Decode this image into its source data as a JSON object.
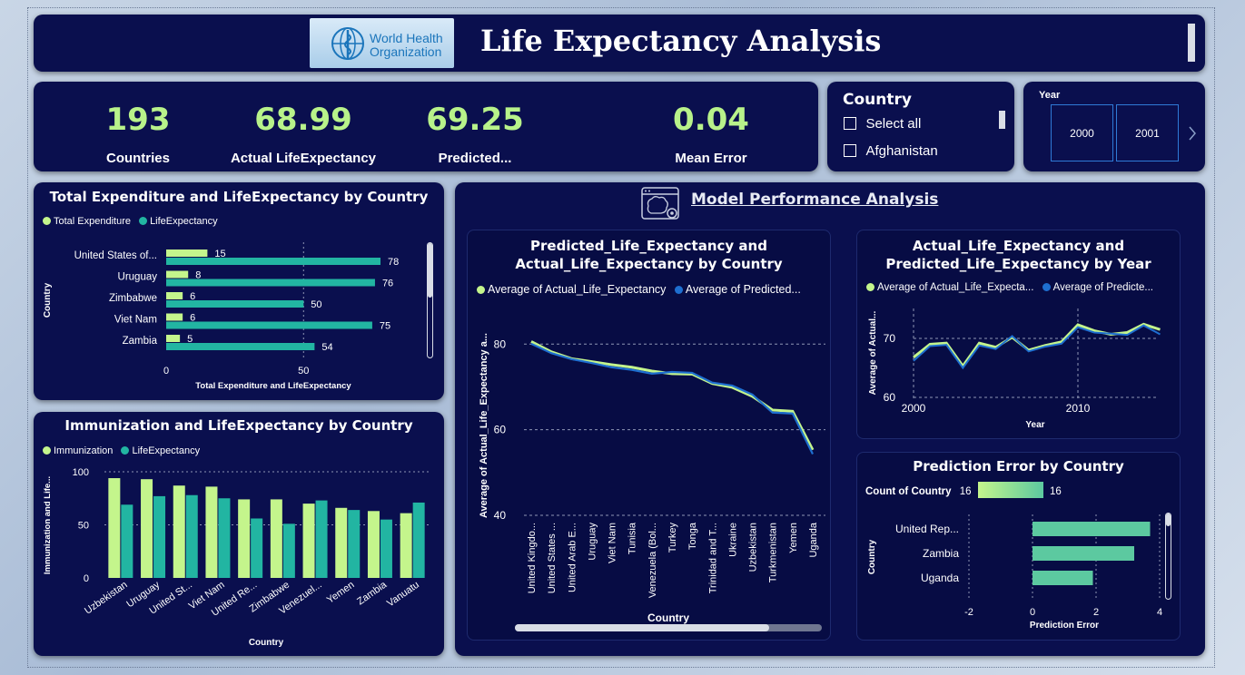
{
  "header": {
    "logo_line1": "World Health",
    "logo_line2": "Organization",
    "title": "Life Expectancy Analysis"
  },
  "kpis": [
    {
      "value": "193",
      "label": "Countries"
    },
    {
      "value": "68.99",
      "label": "Actual LifeExpectancy"
    },
    {
      "value": "69.25",
      "label": "Predicted..."
    },
    {
      "value": "0.04",
      "label": "Mean Error"
    }
  ],
  "country_slicer": {
    "title": "Country",
    "items": [
      "Select all",
      "Afghanistan"
    ]
  },
  "year_slicer": {
    "title": "Year",
    "items": [
      "2000",
      "2001"
    ],
    "next_icon": "chevron-right-icon"
  },
  "colors": {
    "light_green": "#c4f58c",
    "teal": "#22b5a2",
    "blue": "#1e6fd0",
    "bar_green": "#5cc9a0"
  },
  "model_section": {
    "title": "Model Performance Analysis",
    "icon": "brain-gear-icon"
  },
  "chart_data": [
    {
      "id": "expenditure",
      "type": "bar",
      "orientation": "horizontal",
      "title": "Total Expenditure and LifeExpectancy by Country",
      "ylabel": "Country",
      "xlabel": "Total Expenditure and LifeExpectancy",
      "categories": [
        "United States of...",
        "Uruguay",
        "Zimbabwe",
        "Viet Nam",
        "Zambia"
      ],
      "series": [
        {
          "name": "Total Expenditure",
          "values": [
            15,
            8,
            6,
            6,
            5
          ]
        },
        {
          "name": "LifeExpectancy",
          "values": [
            78,
            76,
            50,
            75,
            54
          ]
        }
      ],
      "xticks": [
        0,
        50
      ],
      "xlim": [
        0,
        78
      ]
    },
    {
      "id": "immunization",
      "type": "bar",
      "title": "Immunization and LifeExpectancy by Country",
      "xlabel": "Country",
      "ylabel": "Immunization and Life...",
      "categories": [
        "Uzbekistan",
        "Uruguay",
        "United St...",
        "Viet Nam",
        "United Re...",
        "Zimbabwe",
        "Venezuel...",
        "Yemen",
        "Zambia",
        "Vanuatu"
      ],
      "series": [
        {
          "name": "Immunization",
          "values": [
            94,
            93,
            87,
            86,
            74,
            74,
            70,
            66,
            63,
            61
          ]
        },
        {
          "name": "LifeExpectancy",
          "values": [
            69,
            77,
            78,
            75,
            56,
            51,
            73,
            64,
            55,
            71
          ]
        }
      ],
      "yticks": [
        0,
        50,
        100
      ],
      "ylim": [
        0,
        100
      ]
    },
    {
      "id": "pred_by_country",
      "type": "line",
      "title_line1": "Predicted_Life_Expectancy and",
      "title_line2": "Actual_Life_Expectancy by Country",
      "xlabel": "Country",
      "ylabel": "Average of Actual_Life_Expectancy a...",
      "categories": [
        "United Kingdo...",
        "United States ...",
        "United Arab E...",
        "Uruguay",
        "Viet Nam",
        "Tunisia",
        "Venezuela (Bol...",
        "Turkey",
        "Tonga",
        "Trinidad and T...",
        "Ukraine",
        "Uzbekistan",
        "Turkmenistan",
        "Yemen",
        "Uganda"
      ],
      "series": [
        {
          "name": "Average of Actual_Life_Expectancy",
          "values": [
            80.6,
            78.2,
            76.6,
            75.9,
            75.2,
            74.6,
            73.7,
            73.1,
            73.0,
            70.8,
            69.9,
            67.8,
            64.6,
            64.3,
            55.3
          ]
        },
        {
          "name": "Average of Predicted...",
          "values": [
            80.1,
            77.9,
            76.5,
            75.6,
            74.6,
            74.0,
            73.1,
            73.5,
            73.3,
            71.0,
            70.3,
            68.2,
            64.0,
            63.8,
            54.3
          ]
        }
      ],
      "yticks": [
        40,
        60,
        80
      ],
      "ylim": [
        40,
        86
      ]
    },
    {
      "id": "pred_by_year",
      "type": "line",
      "title_line1": "Actual_Life_Expectancy and",
      "title_line2": "Predicted_Life_Expectancy by Year",
      "xlabel": "Year",
      "ylabel": "Average of Actual...",
      "x": [
        2000,
        2001,
        2002,
        2003,
        2004,
        2005,
        2006,
        2007,
        2008,
        2009,
        2010,
        2011,
        2012,
        2013,
        2014,
        2015
      ],
      "series": [
        {
          "name": "Average of Actual_Life_Expecta...",
          "values": [
            66.8,
            69.0,
            69.2,
            65.3,
            69.2,
            68.5,
            70.2,
            68.0,
            68.8,
            69.4,
            72.3,
            71.3,
            70.7,
            71.0,
            72.4,
            71.5
          ]
        },
        {
          "name": "Average of Predicte...",
          "values": [
            66.2,
            68.7,
            68.9,
            65.0,
            68.8,
            68.2,
            70.4,
            67.8,
            68.6,
            69.1,
            71.9,
            71.0,
            70.8,
            70.6,
            72.2,
            70.7
          ]
        }
      ],
      "xticks": [
        2000,
        2010
      ],
      "yticks": [
        60,
        70
      ],
      "ylim": [
        60,
        75
      ]
    },
    {
      "id": "pred_error",
      "type": "bar",
      "orientation": "horizontal",
      "title": "Prediction Error by Country",
      "legend_title": "Count of Country",
      "legend_min": "16",
      "legend_max": "16",
      "ylabel": "Country",
      "xlabel": "Prediction Error",
      "categories": [
        "United Rep...",
        "Zambia",
        "Uganda"
      ],
      "values": [
        3.7,
        3.2,
        1.9
      ],
      "xticks": [
        -2,
        0,
        2,
        4
      ],
      "xlim": [
        -2,
        4
      ]
    }
  ]
}
